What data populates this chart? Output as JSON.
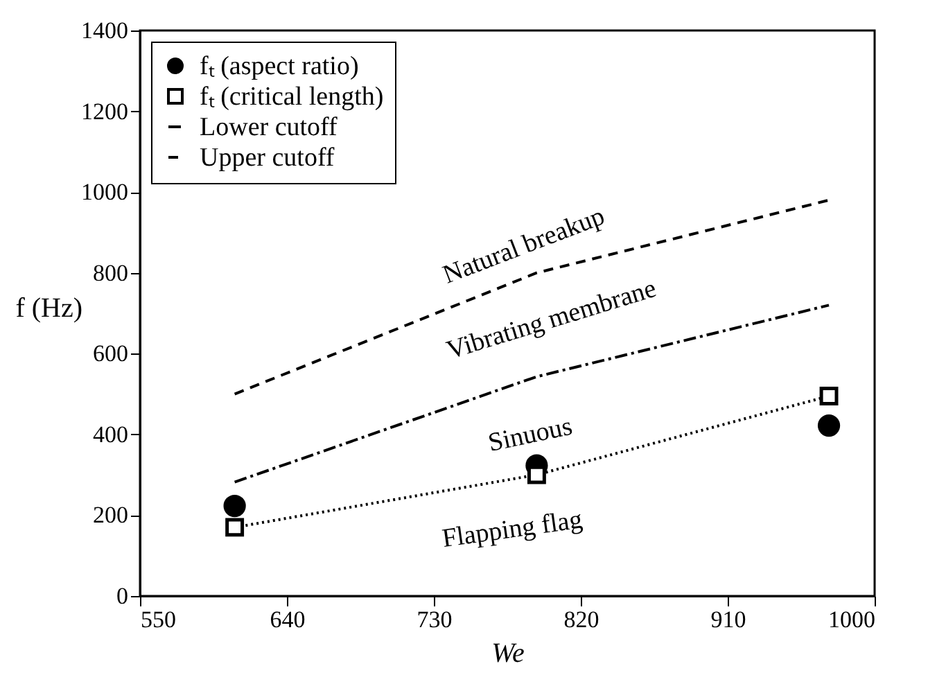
{
  "chart_data": {
    "type": "line",
    "xlabel": "We",
    "ylabel": "f (Hz)",
    "xlim": [
      550,
      1000
    ],
    "xticks": [
      550,
      640,
      730,
      820,
      910,
      1000
    ],
    "ylim": [
      0,
      1400
    ],
    "yticks": [
      0,
      200,
      400,
      600,
      800,
      1000,
      1200,
      1400
    ],
    "grid": false,
    "legend": "top left",
    "x": [
      608,
      793,
      972
    ],
    "series": [
      {
        "name": "fₜ (aspect ratio)",
        "type": "scatter",
        "marker": "circle",
        "color": "#000000",
        "values": [
          223,
          323,
          422
        ]
      },
      {
        "name": "fₜ (critical length)",
        "marker": "square",
        "line_style": "dotted",
        "color": "#000000",
        "values": [
          170,
          300,
          495
        ]
      },
      {
        "name": "Lower cutoff",
        "marker": "none",
        "line_style": "dashdot",
        "color": "#000000",
        "values": [
          282,
          543,
          720
        ]
      },
      {
        "name": "Upper cutoff",
        "marker": "none",
        "line_style": "dashed",
        "color": "#000000",
        "values": [
          500,
          800,
          980
        ]
      }
    ],
    "annotations": [
      "Natural breakup",
      "Vibrating membrane",
      "Sinuous",
      "Flapping flag"
    ]
  }
}
